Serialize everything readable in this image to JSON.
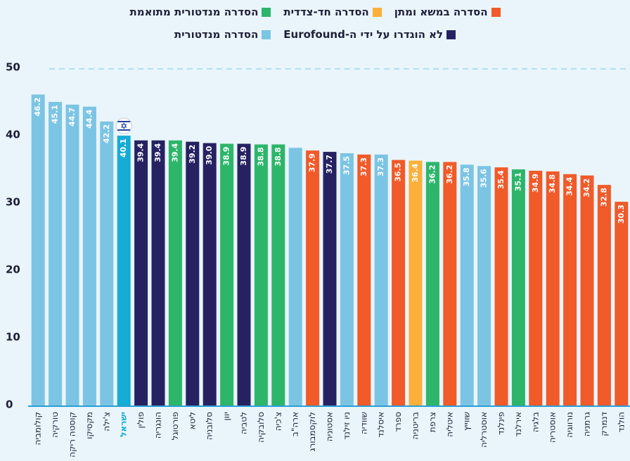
{
  "chart_data": {
    "type": "bar",
    "legend": [
      {
        "name": "הסדרה במשא ומתן",
        "color": "#f15a29"
      },
      {
        "name": "הסדרה חד-צדדית",
        "color": "#fbb03b"
      },
      {
        "name": "הסדרה מנדטורית מתואמת",
        "color": "#2db56a"
      },
      {
        "name": "לא הוגדרו על ידי ה-Eurofound",
        "color": "#262262"
      },
      {
        "name": "הסדרה מנדטורית",
        "color": "#7cc4e4"
      }
    ],
    "categories": [
      "קולומביה",
      "טורקיה",
      "קוסטה ריקה",
      "מקסיקו",
      "צ'ילה",
      "ישראל",
      "פולין",
      "הונגריה",
      "פורטוגל",
      "ליטא",
      "סלובניה",
      "יוון",
      "לטביה",
      "סלובקיה",
      "צ'כיה",
      "ארה\"ב",
      "לוקסמבורג",
      "אסטוניה",
      "ניו זילנד",
      "שוודיה",
      "איסלנד",
      "ספרד",
      "בריטניה",
      "צרפת",
      "איטליה",
      "שווייץ",
      "אוסטרליה",
      "פינלנד",
      "אירלנד",
      "בלגיה",
      "אוסטריה",
      "נורווגיה",
      "גרמניה",
      "דנמרק",
      "הולנד"
    ],
    "values": [
      46.2,
      45.1,
      44.7,
      44.4,
      42.2,
      40.1,
      39.4,
      39.4,
      39.4,
      39.2,
      39.0,
      38.9,
      38.9,
      38.8,
      38.8,
      38.3,
      37.9,
      37.7,
      37.5,
      37.3,
      37.3,
      36.5,
      36.4,
      36.2,
      36.2,
      35.8,
      35.6,
      35.4,
      35.1,
      34.9,
      34.8,
      34.4,
      34.2,
      32.8,
      30.3
    ],
    "value_labels": [
      "46.2",
      "45.1",
      "44.7",
      "44.4",
      "42.2",
      "40.1",
      "39.4",
      "39.4",
      "39.4",
      "39.2",
      "39.0",
      "38.9",
      "38.9",
      "38.8",
      "38.8",
      null,
      "37.9",
      "37.7",
      "37.5",
      "37.3",
      "37.3",
      "36.5",
      "36.4",
      "36.2",
      "36.2",
      "35.8",
      "35.6",
      "35.4",
      "35.1",
      "34.9",
      "34.8",
      "34.4",
      "34.2",
      "32.8",
      "30.3"
    ],
    "colors": [
      "#7cc4e4",
      "#7cc4e4",
      "#7cc4e4",
      "#7cc4e4",
      "#7cc4e4",
      "#16acd4",
      "#262262",
      "#262262",
      "#2db56a",
      "#262262",
      "#262262",
      "#2db56a",
      "#262262",
      "#2db56a",
      "#2db56a",
      "#7cc4e4",
      "#f15a29",
      "#262262",
      "#7cc4e4",
      "#f15a29",
      "#7cc4e4",
      "#f15a29",
      "#fbb03b",
      "#2db56a",
      "#f15a29",
      "#7cc4e4",
      "#7cc4e4",
      "#f15a29",
      "#2db56a",
      "#f15a29",
      "#f15a29",
      "#f15a29",
      "#f15a29",
      "#f15a29",
      "#f15a29"
    ],
    "highlight": 5,
    "ylim": [
      0,
      50
    ],
    "yticks": [
      0,
      10,
      20,
      30,
      40,
      50
    ]
  }
}
